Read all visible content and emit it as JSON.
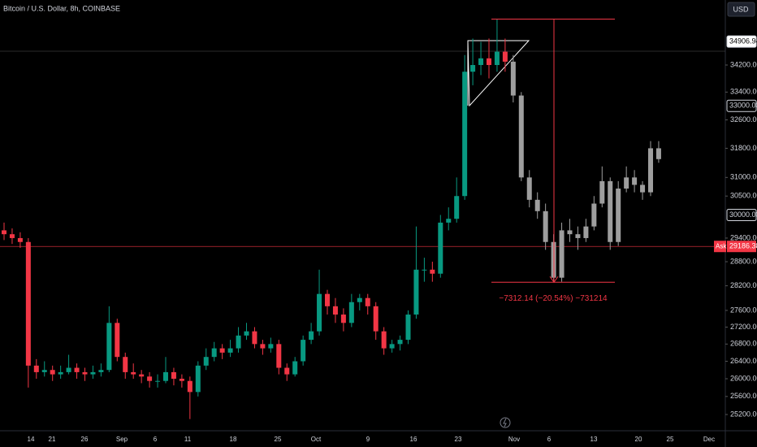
{
  "chart_data": {
    "type": "candlestick",
    "title": "Bitcoin / U.S. Dollar, 8h, COINBASE",
    "currency": "USD",
    "log_scale": true,
    "ylim": [
      24845,
      36199
    ],
    "yticks": [
      {
        "value": 25200,
        "label": "25200.00"
      },
      {
        "value": 25600,
        "label": "25600.00"
      },
      {
        "value": 26000,
        "label": "26000.00"
      },
      {
        "value": 26400,
        "label": "26400.00"
      },
      {
        "value": 26800,
        "label": "26800.00"
      },
      {
        "value": 27200,
        "label": "27200.00"
      },
      {
        "value": 27600,
        "label": "27600.00"
      },
      {
        "value": 28200,
        "label": "28200.00"
      },
      {
        "value": 28800,
        "label": "28800.00"
      },
      {
        "value": 29400,
        "label": "29400.00"
      },
      {
        "value": 30500,
        "label": "30500.00"
      },
      {
        "value": 31000,
        "label": "31000.00"
      },
      {
        "value": 31800,
        "label": "31800.00"
      },
      {
        "value": 32600,
        "label": "32600.00"
      },
      {
        "value": 33400,
        "label": "33400.00"
      },
      {
        "value": 34200,
        "label": "34200.00"
      }
    ],
    "price_labels": [
      {
        "value": 34906.94,
        "label": "34906.94"
      },
      {
        "value": 33000,
        "label": "33000.00"
      },
      {
        "value": 30000,
        "label": "30000.00"
      }
    ],
    "ask": {
      "name": "Ask",
      "value": 29186.38,
      "label": "29186.38",
      "color": "#f23645"
    },
    "x_labels": [
      "14",
      "21",
      "26",
      "Sep",
      "6",
      "11",
      "18",
      "25",
      "Oct",
      "9",
      "16",
      "23",
      "Nov",
      "6",
      "13",
      "20",
      "25",
      "Dec"
    ],
    "up_color": "#089981",
    "down_color": "#f23645",
    "projected_color": "#9e9e9e",
    "candles": [
      [
        29600,
        29800,
        29350,
        29500
      ],
      [
        29500,
        29650,
        29250,
        29400
      ],
      [
        29400,
        29550,
        29150,
        29300
      ],
      [
        29300,
        29400,
        25800,
        26300
      ],
      [
        26300,
        26450,
        26000,
        26150
      ],
      [
        26150,
        26400,
        26050,
        26200
      ],
      [
        26200,
        26300,
        25950,
        26100
      ],
      [
        26100,
        26300,
        26000,
        26150
      ],
      [
        26150,
        26550,
        26100,
        26250
      ],
      [
        26250,
        26350,
        26000,
        26150
      ],
      [
        26150,
        26250,
        25950,
        26100
      ],
      [
        26100,
        26300,
        26000,
        26150
      ],
      [
        26150,
        26350,
        26050,
        26200
      ],
      [
        26200,
        27700,
        26150,
        27300
      ],
      [
        27300,
        27400,
        26400,
        26500
      ],
      [
        26500,
        26600,
        26000,
        26150
      ],
      [
        26150,
        26350,
        26000,
        26100
      ],
      [
        26100,
        26200,
        25900,
        26050
      ],
      [
        26050,
        26150,
        25800,
        25950
      ],
      [
        25950,
        26100,
        25800,
        25950
      ],
      [
        25950,
        26500,
        25900,
        26150
      ],
      [
        26150,
        26250,
        25850,
        26000
      ],
      [
        26000,
        26100,
        25800,
        25950
      ],
      [
        25950,
        26050,
        25100,
        25700
      ],
      [
        25700,
        26400,
        25600,
        26300
      ],
      [
        26300,
        26700,
        26200,
        26500
      ],
      [
        26500,
        26850,
        26400,
        26700
      ],
      [
        26700,
        26800,
        26450,
        26600
      ],
      [
        26600,
        26900,
        26500,
        26700
      ],
      [
        26700,
        27200,
        26600,
        27000
      ],
      [
        27000,
        27300,
        26900,
        27100
      ],
      [
        27100,
        27200,
        26700,
        26800
      ],
      [
        26800,
        26900,
        26550,
        26700
      ],
      [
        26700,
        26950,
        26600,
        26800
      ],
      [
        26800,
        26900,
        26100,
        26250
      ],
      [
        26250,
        26350,
        25950,
        26100
      ],
      [
        26100,
        26500,
        26050,
        26400
      ],
      [
        26400,
        27000,
        26300,
        26900
      ],
      [
        26900,
        27300,
        26800,
        27100
      ],
      [
        27100,
        28600,
        27000,
        28000
      ],
      [
        28000,
        28100,
        27500,
        27700
      ],
      [
        27700,
        27900,
        27300,
        27500
      ],
      [
        27500,
        27650,
        27100,
        27300
      ],
      [
        27300,
        28000,
        27200,
        27800
      ],
      [
        27800,
        28000,
        27600,
        27900
      ],
      [
        27900,
        28000,
        27500,
        27700
      ],
      [
        27700,
        27800,
        26900,
        27100
      ],
      [
        27100,
        27200,
        26550,
        26700
      ],
      [
        26700,
        26900,
        26600,
        26800
      ],
      [
        26800,
        27000,
        26650,
        26900
      ],
      [
        26900,
        27600,
        26800,
        27500
      ],
      [
        27500,
        29700,
        27400,
        28600
      ],
      [
        28600,
        28900,
        28300,
        28600
      ],
      [
        28600,
        28800,
        28300,
        28500
      ],
      [
        28500,
        30000,
        28400,
        29800
      ],
      [
        29800,
        30200,
        29600,
        29900
      ],
      [
        29900,
        31000,
        29800,
        30500
      ],
      [
        30500,
        34500,
        30400,
        34000
      ],
      [
        34000,
        35000,
        33600,
        34200
      ],
      [
        34200,
        34900,
        33900,
        34400
      ],
      [
        34400,
        35000,
        33800,
        34200
      ],
      [
        34200,
        35600,
        34000,
        34600
      ],
      [
        34600,
        35000,
        34000,
        34300
      ]
    ],
    "projected_candles": [
      [
        34300,
        34500,
        33100,
        33300
      ],
      [
        33300,
        33400,
        30900,
        31000
      ],
      [
        31000,
        31200,
        30200,
        30400
      ],
      [
        30400,
        30600,
        29900,
        30100
      ],
      [
        30100,
        30300,
        29100,
        29300
      ],
      [
        29300,
        29500,
        28300,
        28400
      ],
      [
        28400,
        29800,
        28300,
        29600
      ],
      [
        29600,
        29900,
        29300,
        29500
      ],
      [
        29500,
        29700,
        29100,
        29400
      ],
      [
        29400,
        29900,
        29300,
        29700
      ],
      [
        29700,
        30500,
        29600,
        30300
      ],
      [
        30300,
        31300,
        30200,
        30900
      ],
      [
        30900,
        31000,
        29100,
        29300
      ],
      [
        29300,
        30900,
        29200,
        30700
      ],
      [
        30700,
        31300,
        30600,
        31000
      ],
      [
        31000,
        31200,
        30600,
        30800
      ],
      [
        30800,
        30900,
        30400,
        30600
      ],
      [
        30600,
        32000,
        30500,
        31800
      ],
      [
        31800,
        32000,
        31400,
        31500
      ]
    ],
    "measure": {
      "from": 35600,
      "to": 28288,
      "label": "−7312.14 (−20.54%) −731214",
      "color": "#f23645"
    }
  }
}
